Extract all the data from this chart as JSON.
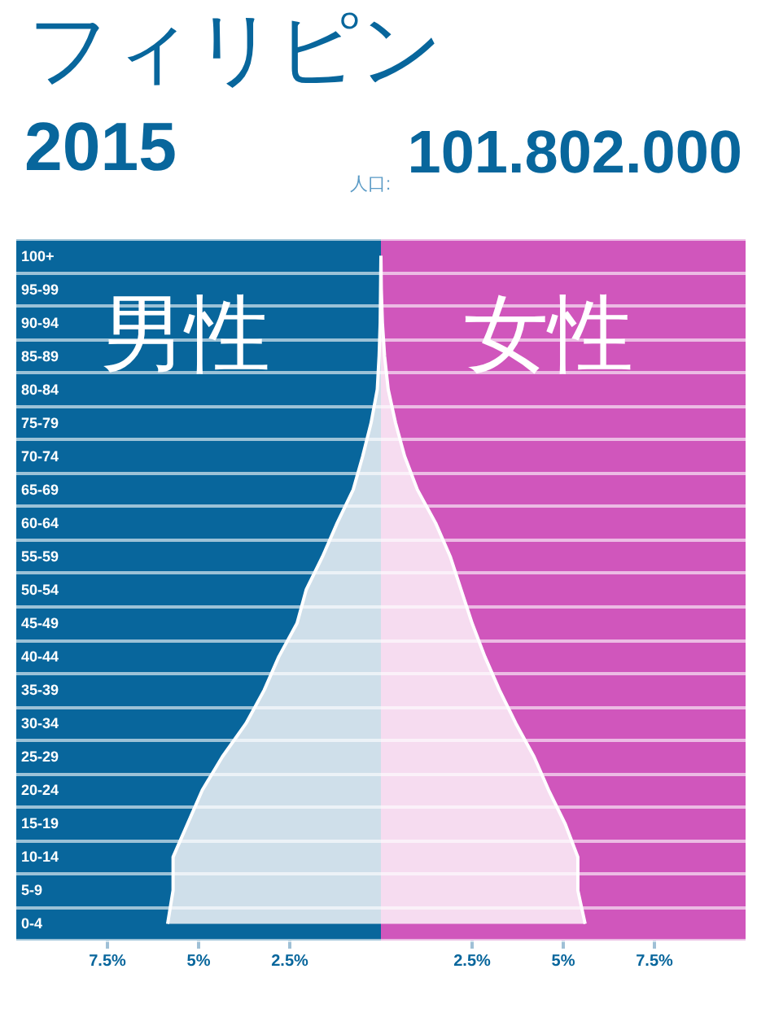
{
  "chart_data": {
    "type": "area",
    "orientation": "horizontal",
    "title": "フィリピン",
    "subtitle": "2015",
    "annotations": [
      "人口:",
      "101.802.000"
    ],
    "categories": [
      "100+",
      "95-99",
      "90-94",
      "85-89",
      "80-84",
      "75-79",
      "70-74",
      "65-69",
      "60-64",
      "55-59",
      "50-54",
      "45-49",
      "40-44",
      "35-39",
      "30-34",
      "25-29",
      "20-24",
      "15-19",
      "10-14",
      "5-9",
      "0-4"
    ],
    "series": [
      {
        "name": "男性",
        "color": "#cfdfea",
        "values": [
          0,
          -0.01,
          -0.02,
          -0.05,
          -0.1,
          -0.27,
          -0.5,
          -0.76,
          -1.2,
          -1.6,
          -2.05,
          -2.3,
          -2.8,
          -3.2,
          -3.7,
          -4.35,
          -4.9,
          -5.3,
          -5.7,
          -5.7,
          -5.85
        ]
      },
      {
        "name": "女性",
        "color": "#f6dcf0",
        "values": [
          0,
          0.01,
          0.04,
          0.1,
          0.2,
          0.4,
          0.65,
          1.0,
          1.5,
          1.9,
          2.2,
          2.5,
          2.85,
          3.25,
          3.7,
          4.2,
          4.6,
          5.05,
          5.4,
          5.4,
          5.6
        ]
      }
    ],
    "bands": [
      {
        "axis": "x",
        "from": -10,
        "to": 0,
        "color": "#08669c"
      },
      {
        "axis": "x",
        "from": 0,
        "to": 10,
        "color": "#d056bc"
      }
    ],
    "xlim": [
      -10,
      10
    ],
    "xticks": [
      {
        "value": -7.5,
        "label": "7.5%"
      },
      {
        "value": -5,
        "label": "5%"
      },
      {
        "value": -2.5,
        "label": "2.5%"
      },
      {
        "value": 2.5,
        "label": "2.5%"
      },
      {
        "value": 5,
        "label": "5%"
      },
      {
        "value": 7.5,
        "label": "7.5%"
      }
    ],
    "grid": "y",
    "marker": "none"
  }
}
